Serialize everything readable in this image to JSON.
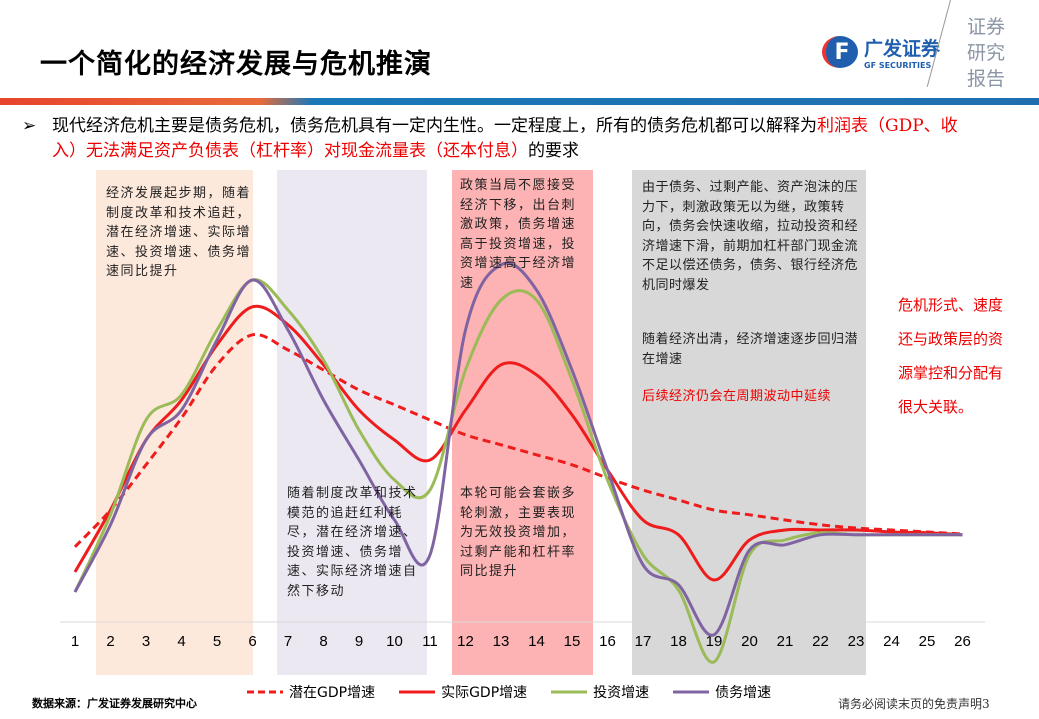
{
  "header": {
    "title": "一个简化的经济发展与危机推演",
    "logo_cn": "广发证券",
    "logo_en": "GF SECURITIES",
    "side_tag": [
      "证券",
      "研究",
      "报告"
    ]
  },
  "bullet": {
    "mark": "➢",
    "text_plain": "现代经济危机主要是债务危机，债务危机具有一定内生性。一定程度上，所有的债务危机都可以解释为",
    "text_red": "利润表（GDP、收入）无法满足资产负债表（杠杆率）对现金流量表（还本付息）",
    "text_end": "的要求"
  },
  "colors": {
    "band_start": "#fde9dc",
    "band_decline": "#ebe8f1",
    "band_stimulus": "#fdb3b3",
    "band_crisis": "#d8d8d8",
    "potential": "#ee1c1c",
    "actual": "#ee1c1c",
    "investment": "#9bbb59",
    "debt": "#8064a2"
  },
  "notes": {
    "start": "经济发展起步期，随着制度改革和技术追赶，潜在经济增速、实际增速、投资增速、债务增速同比提升",
    "decline": "随着制度改革和技术模范的追赶红利耗尽，潜在经济增速、投资增速、债务增速、实际经济增速自然下移动",
    "stimulus_top": "政策当局不愿接受经济下移，出台刺激政策，债务增速高于投资增速，投资增速高于经济增速",
    "stimulus_bottom": "本轮可能会套嵌多轮刺激，主要表现为无效投资增加，过剩产能和杠杆率同比提升",
    "crisis_1": "由于债务、过剩产能、资产泡沫的压力下，刺激政策无以为继，政策转向，债务会快速收缩，拉动投资和经济增速下滑，前期加杠杆部门现金流不足以偿还债务，债务、银行经济危机同时爆发",
    "crisis_2": "随着经济出清，经济增速逐步回归潜在增速",
    "crisis_3": "后续经济仍会在周期波动中延续",
    "side": "危机形式、速度还与政策层的资源掌控和分配有很大关联。"
  },
  "chart_data": {
    "type": "line",
    "title": "",
    "xlabel": "",
    "ylabel": "",
    "grid": false,
    "legend": "bottom",
    "x": [
      1,
      2,
      3,
      4,
      5,
      6,
      7,
      8,
      9,
      10,
      11,
      12,
      13,
      14,
      15,
      16,
      17,
      18,
      19,
      20,
      21,
      22,
      23,
      24,
      25,
      26
    ],
    "shaded_ranges": [
      {
        "from": 2,
        "to": 6,
        "color": "#fde9dc"
      },
      {
        "from": 7,
        "to": 11,
        "color": "#ebe8f1"
      },
      {
        "from": 12,
        "to": 15,
        "color": "#fdb3b3"
      },
      {
        "from": 17,
        "to": 23,
        "color": "#d8d8d8"
      }
    ],
    "series": [
      {
        "name": "潜在GDP增速",
        "style": "dashed",
        "color": "#ee1c1c",
        "values": [
          23.3,
          32.5,
          43.8,
          55.5,
          68.8,
          76.3,
          72.5,
          67.5,
          62.5,
          58.8,
          55,
          51.3,
          48.8,
          46.3,
          43.8,
          40.5,
          37.5,
          35,
          32.5,
          31.3,
          30,
          28.8,
          28,
          27.5,
          27,
          26.5
        ]
      },
      {
        "name": "实际GDP增速",
        "style": "solid",
        "color": "#ee1c1c",
        "values": [
          17,
          32.5,
          50,
          60,
          73.8,
          83.3,
          78.8,
          68.8,
          57.5,
          50,
          45,
          57.5,
          68.8,
          66.3,
          56.3,
          42.5,
          30,
          26.3,
          15,
          25,
          27.5,
          27.5,
          27.5,
          27,
          26.8,
          26.3
        ]
      },
      {
        "name": "投资增速",
        "style": "solid",
        "color": "#9bbb59",
        "values": [
          12,
          31.3,
          55,
          61.3,
          77.5,
          90,
          82.5,
          70,
          52.5,
          40,
          37.5,
          67.5,
          85,
          85,
          65,
          40,
          21.3,
          12.5,
          -5.5,
          21.3,
          25,
          26.8,
          26.3,
          26.3,
          26.3,
          26.3
        ]
      },
      {
        "name": "债务增速",
        "style": "solid",
        "color": "#8064a2",
        "values": [
          12,
          28.8,
          50,
          57.5,
          75,
          90,
          77.5,
          60,
          45,
          30,
          21.3,
          77.5,
          93.8,
          87.5,
          67.5,
          42.5,
          18.8,
          13.8,
          1.3,
          22.5,
          23.8,
          26.3,
          26.3,
          26.3,
          26.3,
          26.3
        ]
      }
    ]
  },
  "footer": {
    "source": "数据来源：广发证券发展研究中心",
    "disclaimer": "请务必阅读末页的免责声明3"
  }
}
